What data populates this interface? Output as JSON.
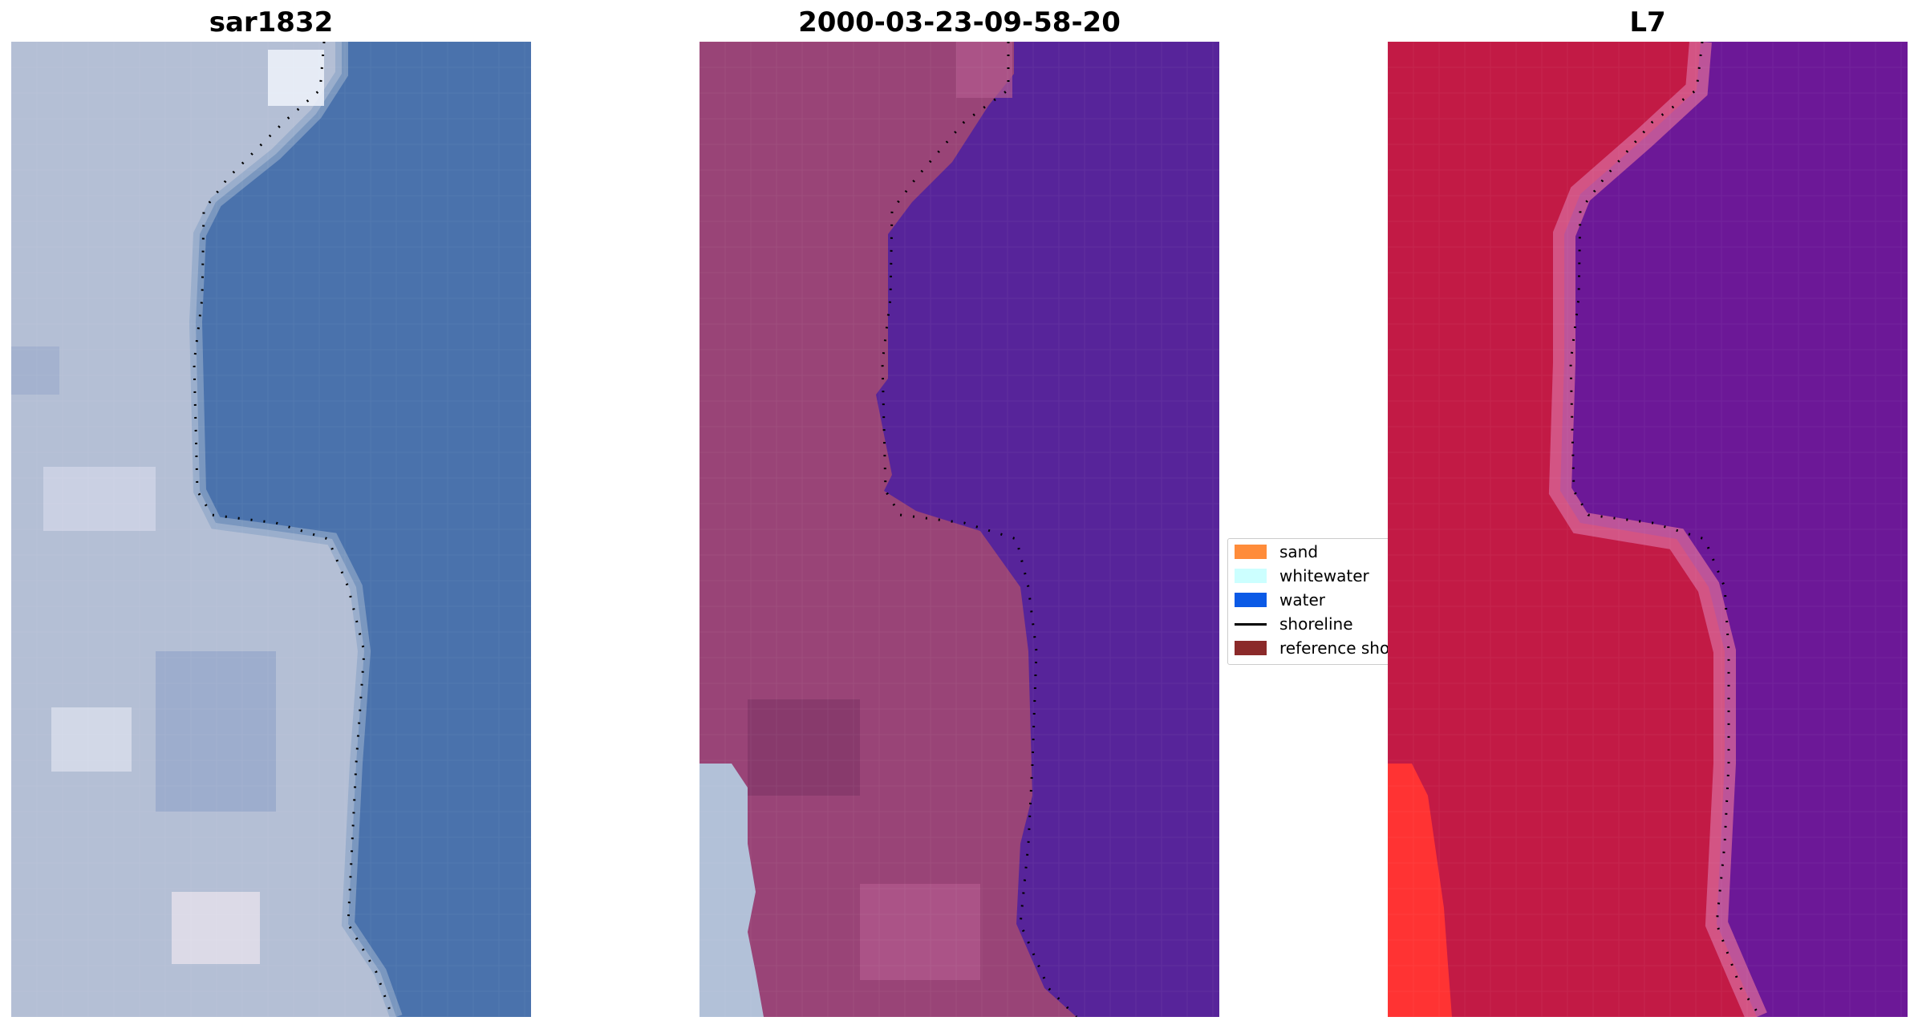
{
  "panels": [
    {
      "id": "rgb",
      "title": "sar1832"
    },
    {
      "id": "classified",
      "title": "2000-03-23-09-58-20"
    },
    {
      "id": "falsecolor",
      "title": "L7"
    }
  ],
  "legend": {
    "items": [
      {
        "label": "sand",
        "color": "#ff8c3a",
        "kind": "patch"
      },
      {
        "label": "whitewater",
        "color": "#ccffff",
        "kind": "patch"
      },
      {
        "label": "water",
        "color": "#0b5ae6",
        "kind": "patch"
      },
      {
        "label": "shoreline",
        "color": "#000000",
        "kind": "line"
      },
      {
        "label": "reference shoreline",
        "color": "#8b2a2a",
        "kind": "patch"
      }
    ]
  },
  "colors": {
    "rgb_land": "#b4bfd5",
    "rgb_water": "#4a72ac",
    "class_land": "#994477",
    "class_water": "#57249a",
    "false_land": "#c21a45",
    "false_water": "#6c1897"
  }
}
